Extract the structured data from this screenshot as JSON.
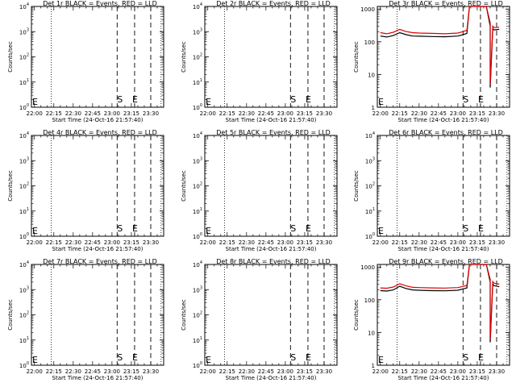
{
  "chart_data": [
    {
      "type": "line",
      "title": "Det 1r BLACK = Events, RED = LLD",
      "xlabel": "Start Time (24-Oct-16 21:57:40)",
      "ylabel": "Counts/sec",
      "y_scale": "log",
      "ylim_exp": [
        0,
        4
      ],
      "ytick_exps": [
        0,
        1,
        2,
        3,
        4
      ],
      "xticks": [
        "22:00",
        "22:15",
        "22:30",
        "22:45",
        "23:00",
        "23:15",
        "23:30"
      ],
      "markers": [
        "S",
        "E"
      ],
      "series": []
    },
    {
      "type": "line",
      "title": "Det 2r BLACK = Events, RED = LLD",
      "xlabel": "Start Time (24-Oct-16 21:57:40)",
      "ylabel": "Counts/sec",
      "y_scale": "log",
      "ylim_exp": [
        0,
        4
      ],
      "ytick_exps": [
        0,
        1,
        2,
        3,
        4
      ],
      "xticks": [
        "22:00",
        "22:15",
        "22:30",
        "22:45",
        "23:00",
        "23:15",
        "23:30"
      ],
      "markers": [
        "S",
        "E"
      ],
      "series": []
    },
    {
      "type": "line",
      "title": "Det 3r BLACK = Events, RED = LLD",
      "xlabel": "Start Time (24-Oct-16 21:57:40)",
      "ylabel": "Counts/sec",
      "y_scale": "log",
      "ylim": [
        1,
        1200
      ],
      "yticks": [
        "1",
        "10",
        "100",
        "1000"
      ],
      "xticks": [
        "22:00",
        "22:15",
        "22:30",
        "22:45",
        "23:00",
        "23:15",
        "23:30"
      ],
      "markers": [
        "S",
        "E"
      ],
      "series": [
        {
          "color": "#000000",
          "x": [
            "22:00",
            "22:05",
            "22:10",
            "22:15",
            "22:20",
            "22:25",
            "22:30",
            "22:40",
            "22:50",
            "23:00",
            "23:04",
            "23:07",
            "23:09",
            "23:12",
            "23:16",
            "23:19",
            "23:22",
            "23:25",
            "23:25",
            "23:27",
            "23:28",
            "23:32"
          ],
          "y": [
            150,
            140,
            155,
            190,
            165,
            150,
            148,
            145,
            142,
            150,
            165,
            180,
            1200,
            1200,
            1200,
            1200,
            1200,
            300,
            4,
            250,
            230,
            240
          ]
        },
        {
          "color": "#dd0000",
          "x": [
            "22:00",
            "22:05",
            "22:10",
            "22:15",
            "22:20",
            "22:25",
            "22:30",
            "22:40",
            "22:50",
            "23:00",
            "23:04",
            "23:07",
            "23:09",
            "23:12",
            "23:16",
            "23:19",
            "23:22",
            "23:25",
            "23:25",
            "23:27",
            "23:28",
            "23:32"
          ],
          "y": [
            190,
            175,
            195,
            240,
            205,
            190,
            185,
            180,
            175,
            185,
            205,
            225,
            1200,
            1200,
            1200,
            1200,
            1200,
            380,
            5,
            300,
            270,
            280
          ]
        }
      ]
    },
    {
      "type": "line",
      "title": "Det 4r BLACK = Events, RED = LLD",
      "xlabel": "Start Time (24-Oct-16 21:57:40)",
      "ylabel": "Counts/sec",
      "y_scale": "log",
      "ylim_exp": [
        0,
        4
      ],
      "ytick_exps": [
        0,
        1,
        2,
        3,
        4
      ],
      "xticks": [
        "22:00",
        "22:15",
        "22:30",
        "22:45",
        "23:00",
        "23:15",
        "23:30"
      ],
      "markers": [
        "S",
        "E"
      ],
      "series": []
    },
    {
      "type": "line",
      "title": "Det 5r BLACK = Events, RED = LLD",
      "xlabel": "Start Time (24-Oct-16 21:57:40)",
      "ylabel": "Counts/sec",
      "y_scale": "log",
      "ylim_exp": [
        0,
        4
      ],
      "ytick_exps": [
        0,
        1,
        2,
        3,
        4
      ],
      "xticks": [
        "22:00",
        "22:15",
        "22:30",
        "22:45",
        "23:00",
        "23:15",
        "23:30"
      ],
      "markers": [
        "S",
        "E"
      ],
      "series": []
    },
    {
      "type": "line",
      "title": "Det 6r BLACK = Events, RED = LLD",
      "xlabel": "Start Time (24-Oct-16 21:57:40)",
      "ylabel": "Counts/sec",
      "y_scale": "log",
      "ylim_exp": [
        0,
        4
      ],
      "ytick_exps": [
        0,
        1,
        2,
        3,
        4
      ],
      "xticks": [
        "22:00",
        "22:15",
        "22:30",
        "22:45",
        "23:00",
        "23:15",
        "23:30"
      ],
      "markers": [
        "S",
        "E"
      ],
      "series": []
    },
    {
      "type": "line",
      "title": "Det 7r BLACK = Events, RED = LLD",
      "xlabel": "Start Time (24-Oct-16 21:57:40)",
      "ylabel": "Counts/sec",
      "y_scale": "log",
      "ylim_exp": [
        0,
        4
      ],
      "ytick_exps": [
        0,
        1,
        2,
        3,
        4
      ],
      "xticks": [
        "22:00",
        "22:15",
        "22:30",
        "22:45",
        "23:00",
        "23:15",
        "23:30"
      ],
      "markers": [
        "S",
        "E"
      ],
      "series": []
    },
    {
      "type": "line",
      "title": "Det 8r BLACK = Events, RED = LLD",
      "xlabel": "Start Time (24-Oct-16 21:57:40)",
      "ylabel": "Counts/sec",
      "y_scale": "log",
      "ylim_exp": [
        0,
        4
      ],
      "ytick_exps": [
        0,
        1,
        2,
        3,
        4
      ],
      "xticks": [
        "22:00",
        "22:15",
        "22:30",
        "22:45",
        "23:00",
        "23:15",
        "23:30"
      ],
      "markers": [
        "S",
        "E"
      ],
      "series": []
    },
    {
      "type": "line",
      "title": "Det 9r BLACK = Events, RED = LLD",
      "xlabel": "Start Time (24-Oct-16 21:57:40)",
      "ylabel": "Counts/sec",
      "y_scale": "log",
      "ylim": [
        1,
        1200
      ],
      "yticks": [
        "1",
        "10",
        "100",
        "1000"
      ],
      "xticks": [
        "22:00",
        "22:15",
        "22:30",
        "22:45",
        "23:00",
        "23:15",
        "23:30"
      ],
      "markers": [
        "S",
        "E"
      ],
      "series": [
        {
          "color": "#000000",
          "x": [
            "22:00",
            "22:05",
            "22:10",
            "22:15",
            "22:20",
            "22:25",
            "22:30",
            "22:40",
            "22:50",
            "23:00",
            "23:04",
            "23:07",
            "23:09",
            "23:12",
            "23:16",
            "23:19",
            "23:22",
            "23:25",
            "23:25",
            "23:27",
            "23:28",
            "23:32"
          ],
          "y": [
            190,
            185,
            200,
            260,
            220,
            200,
            195,
            190,
            188,
            195,
            215,
            230,
            1200,
            1200,
            1200,
            1200,
            1200,
            350,
            5,
            300,
            270,
            250
          ]
        },
        {
          "color": "#dd0000",
          "x": [
            "22:00",
            "22:05",
            "22:10",
            "22:15",
            "22:20",
            "22:25",
            "22:30",
            "22:40",
            "22:50",
            "23:00",
            "23:04",
            "23:07",
            "23:09",
            "23:12",
            "23:16",
            "23:19",
            "23:22",
            "23:25",
            "23:25",
            "23:27",
            "23:28",
            "23:32"
          ],
          "y": [
            230,
            225,
            245,
            310,
            265,
            240,
            235,
            230,
            228,
            235,
            255,
            275,
            1200,
            1200,
            1200,
            1200,
            1200,
            420,
            6,
            360,
            320,
            300
          ]
        }
      ]
    }
  ]
}
